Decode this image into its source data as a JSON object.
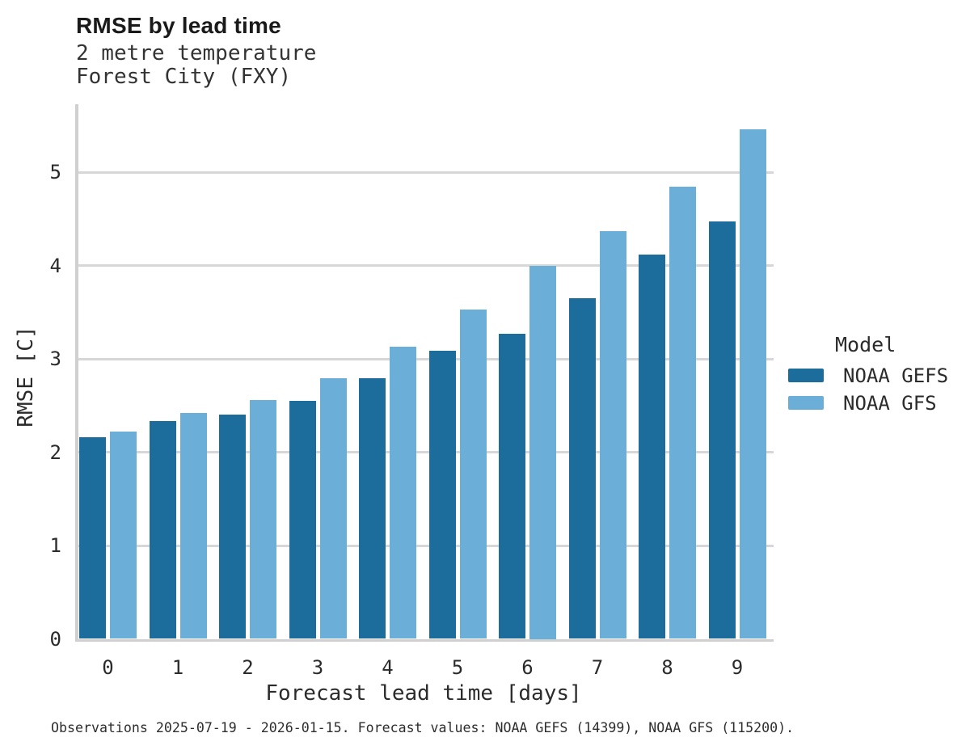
{
  "header": {
    "title": "RMSE by lead time",
    "subtitle_lines": [
      "2 metre temperature",
      "Forest City (FXY)"
    ]
  },
  "legend": {
    "title": "Model",
    "items": [
      "NOAA GEFS",
      "NOAA GFS"
    ]
  },
  "footer": {
    "caption": "Observations 2025-07-19 - 2026-01-15. Forecast values: NOAA GEFS (14399), NOAA GFS (115200)."
  },
  "colors": {
    "noaa_gefs": "#1d6d9c",
    "noaa_gfs": "#6bafd8",
    "gridline": "#d7d7d7",
    "axis": "#d0d0d0",
    "text": "#2b2b2b",
    "background": "#ffffff"
  },
  "chart_data": {
    "type": "bar",
    "title": "RMSE by lead time",
    "subtitle": "2 metre temperature, Forest City (FXY)",
    "xlabel": "Forecast lead time [days]",
    "ylabel": "RMSE [C]",
    "categories": [
      "0",
      "1",
      "2",
      "3",
      "4",
      "5",
      "6",
      "7",
      "8",
      "9"
    ],
    "series": [
      {
        "name": "NOAA GEFS",
        "color": "#1d6d9c",
        "values": [
          2.16,
          2.33,
          2.4,
          2.55,
          2.79,
          3.09,
          3.27,
          3.65,
          4.12,
          4.47
        ]
      },
      {
        "name": "NOAA GFS",
        "color": "#6bafd8",
        "values": [
          2.22,
          2.42,
          2.56,
          2.79,
          3.13,
          3.53,
          4.0,
          4.37,
          4.84,
          5.46
        ]
      }
    ],
    "ylim": [
      0,
      5.76
    ],
    "yticks": [
      0,
      1,
      2,
      3,
      4,
      5
    ],
    "grid": "horizontal",
    "legend_title": "Model",
    "legend_position": "right-center"
  }
}
